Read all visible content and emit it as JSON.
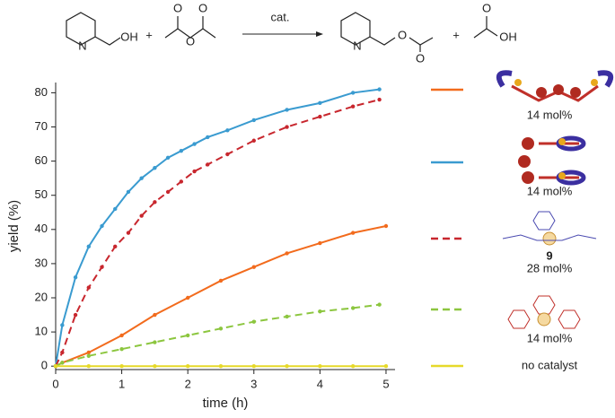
{
  "scheme": {
    "reactant_labels": [
      "N",
      "OH"
    ],
    "plus_1": "+",
    "anhydride_labels": [
      "O",
      "O",
      "O"
    ],
    "arrow_label": "cat.",
    "product_labels": [
      "N",
      "O",
      "O"
    ],
    "plus_2": "+",
    "acid_labels": [
      "O",
      "OH"
    ]
  },
  "chart_data": {
    "type": "line",
    "xlabel": "time (h)",
    "ylabel": "yield (%)",
    "xlim": [
      0,
      5.15
    ],
    "ylim": [
      -1,
      83
    ],
    "xticks": [
      0,
      1,
      2,
      3,
      4,
      5
    ],
    "yticks": [
      0,
      10,
      20,
      30,
      40,
      50,
      60,
      70,
      80
    ],
    "series": [
      {
        "name": "14 mol%",
        "color": "#f26b1d",
        "dashed": false,
        "x": [
          0,
          0.1,
          0.5,
          1.0,
          1.5,
          2.0,
          2.5,
          3.0,
          3.5,
          4.0,
          4.5,
          5.0
        ],
        "values": [
          0,
          1,
          4,
          9,
          15,
          20,
          25,
          29,
          33,
          36,
          39,
          41
        ]
      },
      {
        "name": "14 mol%",
        "color": "#3a9bd0",
        "dashed": false,
        "x": [
          0,
          0.1,
          0.3,
          0.5,
          0.7,
          0.9,
          1.1,
          1.3,
          1.5,
          1.7,
          1.9,
          2.1,
          2.3,
          2.6,
          3.0,
          3.5,
          4.0,
          4.5,
          4.9
        ],
        "values": [
          0,
          12,
          26,
          35,
          41,
          46,
          51,
          55,
          58,
          61,
          63,
          65,
          67,
          69,
          72,
          75,
          77,
          80,
          81
        ]
      },
      {
        "name": "28 mol%",
        "compound": "9",
        "color": "#c8272e",
        "dashed": true,
        "x": [
          0,
          0.1,
          0.3,
          0.5,
          0.7,
          0.9,
          1.1,
          1.3,
          1.5,
          1.7,
          1.9,
          2.1,
          2.3,
          2.6,
          3.0,
          3.5,
          4.0,
          4.5,
          4.9
        ],
        "values": [
          0,
          4,
          15,
          23,
          29,
          35,
          39,
          44,
          48,
          51,
          54,
          57,
          59,
          62,
          66,
          70,
          73,
          76,
          78
        ]
      },
      {
        "name": "14 mol%",
        "color": "#8cc63f",
        "dashed": true,
        "x": [
          0,
          0.1,
          0.5,
          1.0,
          1.5,
          2.0,
          2.5,
          3.0,
          3.5,
          4.0,
          4.5,
          4.9
        ],
        "values": [
          0,
          1,
          3,
          5,
          7,
          9,
          11,
          13,
          14.5,
          16,
          17,
          18
        ]
      },
      {
        "name": "no catalyst",
        "color": "#e6d92a",
        "dashed": false,
        "x": [
          0,
          0.5,
          1.0,
          1.5,
          2.0,
          2.5,
          3.0,
          3.5,
          4.0,
          4.5,
          5.0
        ],
        "values": [
          0,
          0,
          0,
          0,
          0,
          0,
          0,
          0,
          0,
          0,
          0
        ]
      }
    ]
  }
}
